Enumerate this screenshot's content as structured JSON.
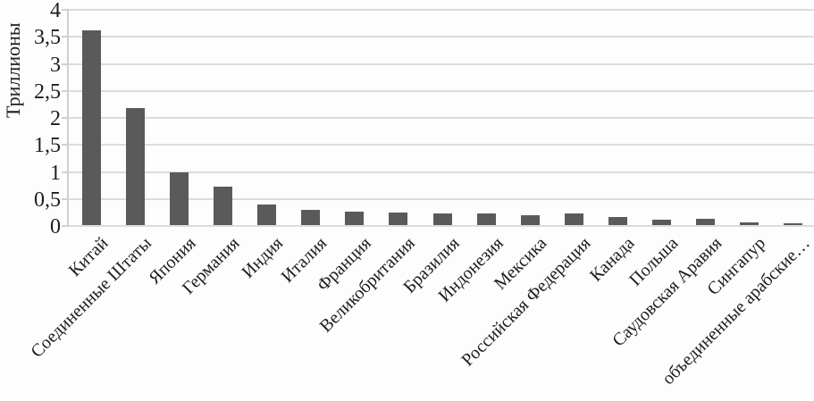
{
  "colors": {
    "bar": "#5a5a5a",
    "gridline": "#dcdcdc",
    "axis": "#d0d0d0",
    "text": "#1c1c1c",
    "background": "#fdfdfd"
  },
  "chart_data": {
    "type": "bar",
    "title": "",
    "xlabel": "",
    "ylabel": "Триллионы",
    "ylim": [
      0,
      4
    ],
    "grid": true,
    "legend": "none",
    "decimal_separator": ",",
    "ytick_values": [
      0,
      0.5,
      1,
      1.5,
      2,
      2.5,
      3,
      3.5,
      4
    ],
    "ytick_labels": [
      "0",
      "0,5",
      "1",
      "1,5",
      "2",
      "2,5",
      "3",
      "3,5",
      "4"
    ],
    "categories": [
      "Китай",
      "Соединенные Штаты",
      "Япония",
      "Германия",
      "Индия",
      "Италия",
      "Франция",
      "Великобритания",
      "Бразилия",
      "Индонезия",
      "Мексика",
      "Российская Федерация",
      "Канада",
      "Польша",
      "Саудовская Аравия",
      "Сингапур",
      "объединенные арабские…"
    ],
    "values": [
      3.6,
      2.16,
      0.98,
      0.71,
      0.38,
      0.28,
      0.25,
      0.23,
      0.22,
      0.21,
      0.19,
      0.21,
      0.15,
      0.1,
      0.11,
      0.05,
      0.03
    ]
  }
}
